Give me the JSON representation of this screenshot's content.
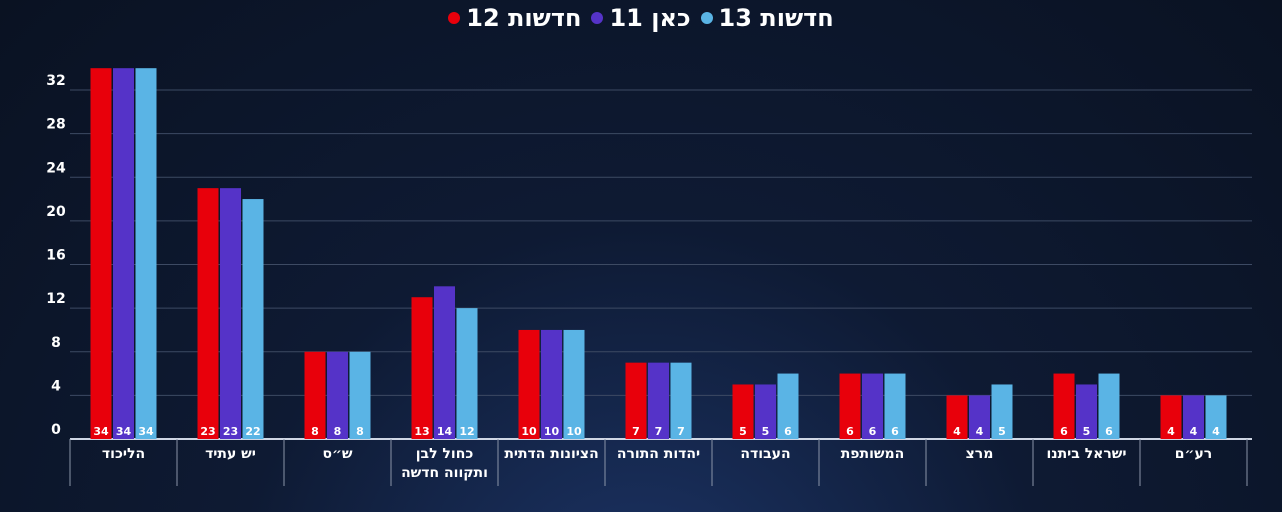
{
  "chart_data": {
    "type": "bar",
    "categories": [
      "הליכוד",
      "יש עתיד",
      "ש״ס",
      "כחול לבן ותקווה חדשה",
      "הציונות הדתית",
      "יהדות התורה",
      "העבודה",
      "המשותפת",
      "מרצ",
      "ישראל ביתנו",
      "רע״ם"
    ],
    "series": [
      {
        "name": "חדשות 12",
        "color": "#e8000b",
        "values": [
          34,
          23,
          8,
          13,
          10,
          7,
          5,
          6,
          4,
          6,
          4
        ]
      },
      {
        "name": "כאן 11",
        "color": "#5533c8",
        "values": [
          34,
          23,
          8,
          14,
          10,
          7,
          5,
          6,
          4,
          5,
          4
        ]
      },
      {
        "name": "חדשות 13",
        "color": "#5ab4e5",
        "values": [
          34,
          22,
          8,
          12,
          10,
          7,
          6,
          6,
          5,
          6,
          4
        ]
      }
    ],
    "yticks": [
      0,
      4,
      8,
      12,
      16,
      20,
      24,
      28,
      32
    ],
    "ylim": [
      0,
      36
    ],
    "grid": true,
    "legend": "top",
    "data_labels": true
  }
}
